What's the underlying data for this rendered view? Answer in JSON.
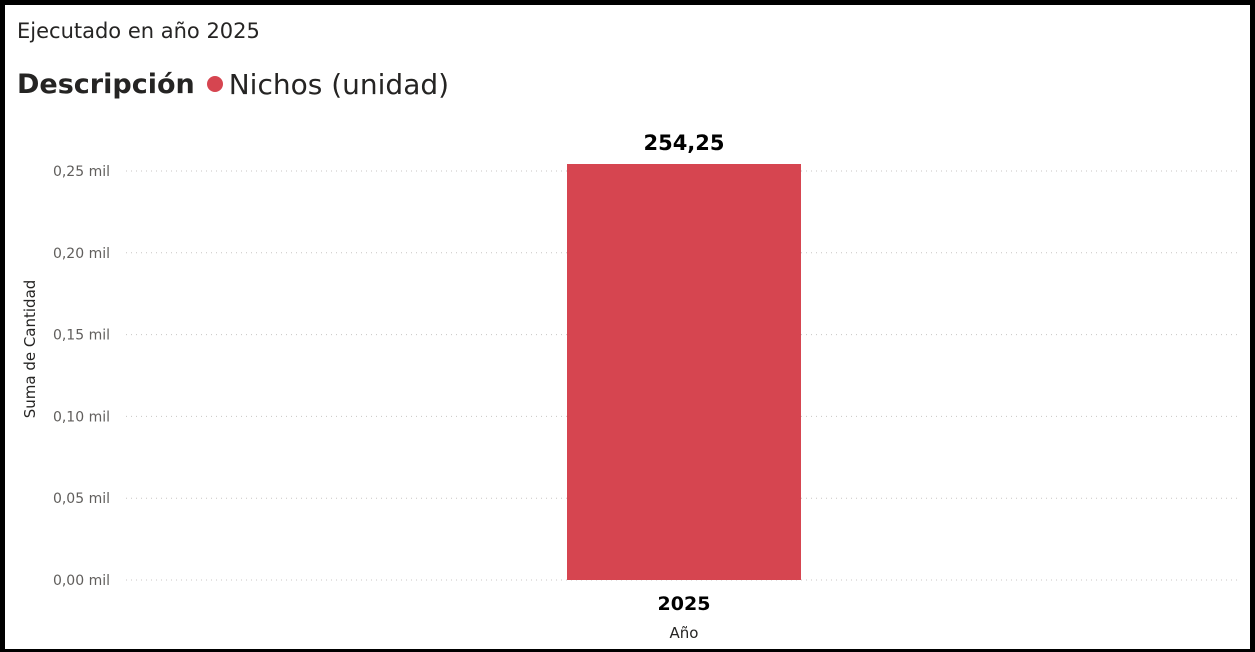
{
  "visual": {
    "title": "Ejecutado en año 2025"
  },
  "legend": {
    "title": "Descripción",
    "items": [
      {
        "label": "Nichos (unidad)",
        "color": "#D64550"
      }
    ]
  },
  "chart_data": {
    "type": "bar",
    "title": "Ejecutado en año 2025",
    "categories": [
      "2025"
    ],
    "series": [
      {
        "name": "Nichos (unidad)",
        "values": [
          254.25
        ],
        "color": "#D64550"
      }
    ],
    "data_labels": [
      "254,25"
    ],
    "xlabel": "Año",
    "ylabel": "Suma de Cantidad",
    "ylim": [
      0,
      254.25
    ],
    "yticks": [
      0,
      50,
      100,
      150,
      200,
      250
    ],
    "ytick_labels": [
      "0,00 mil",
      "0,05 mil",
      "0,10 mil",
      "0,15 mil",
      "0,20 mil",
      "0,25 mil"
    ],
    "grid": true,
    "grid_style": "dotted",
    "legend_position": "top-left"
  }
}
